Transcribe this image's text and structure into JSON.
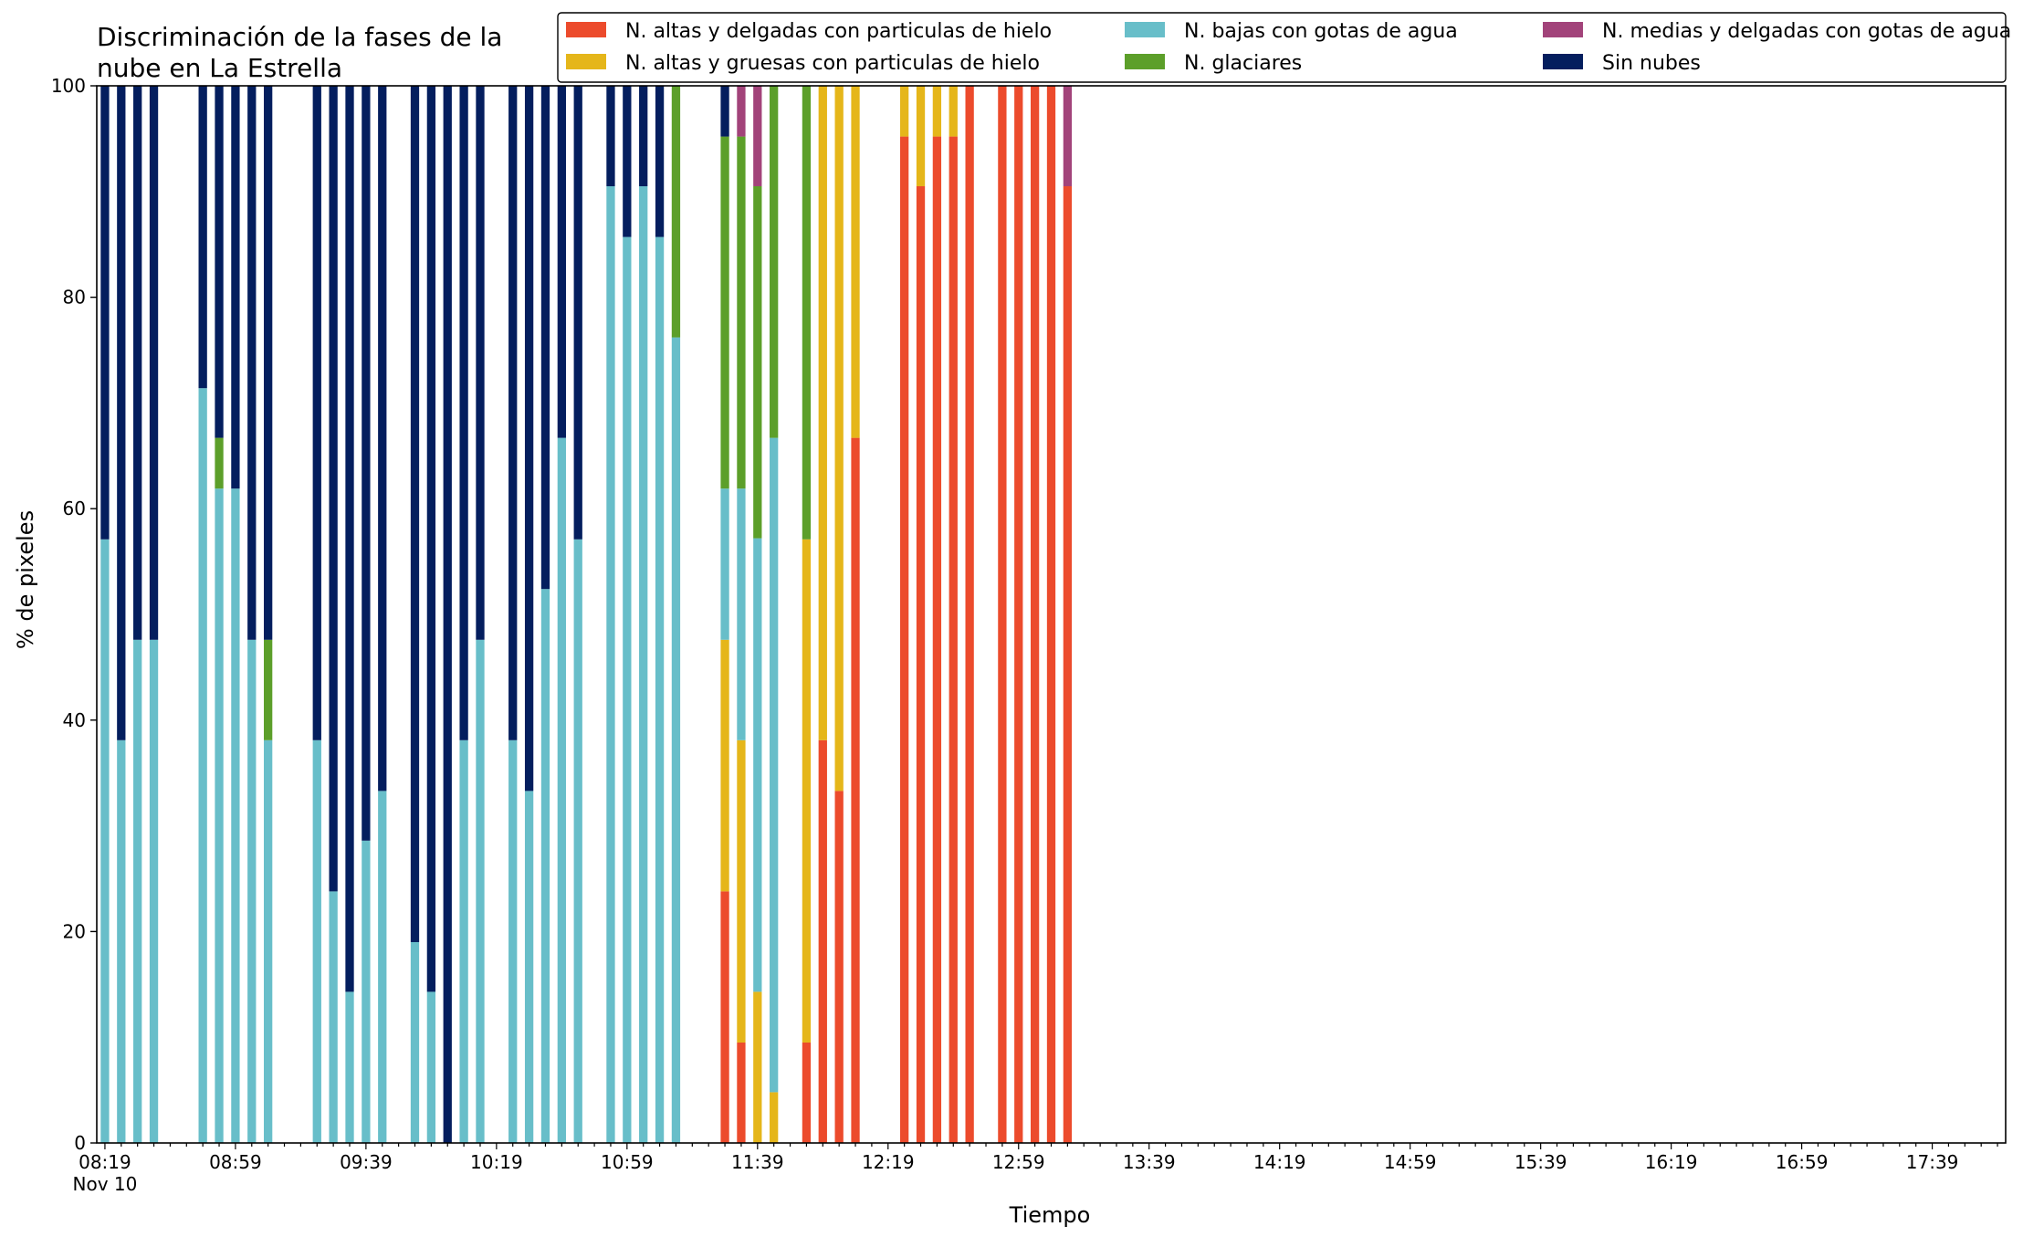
{
  "chart_data": {
    "type": "bar",
    "stacked": true,
    "title": "Discriminación de la fases de la\nnube en La Estrella",
    "xlabel": "Tiempo",
    "ylabel": "% de pixeles",
    "ylim": [
      0,
      100
    ],
    "yticks": [
      0,
      20,
      40,
      60,
      80,
      100
    ],
    "x_tick_labels": [
      "08:19\nNov 10",
      "08:59",
      "09:39",
      "10:19",
      "10:59",
      "11:39",
      "12:19",
      "12:59",
      "13:39",
      "14:19",
      "14:59",
      "15:39",
      "16:19",
      "16:59",
      "17:39"
    ],
    "legend_position": "top-right",
    "grid": false,
    "series": [
      {
        "name": "N. altas y delgadas con particulas de hielo",
        "color": "#ec4b2c"
      },
      {
        "name": "N. altas y gruesas con particulas de hielo",
        "color": "#e5b61a"
      },
      {
        "name": "N. bajas con gotas de agua",
        "color": "#68bec9"
      },
      {
        "name": "N. glaciares",
        "color": "#5c9f2a"
      },
      {
        "name": "N. medias y delgadas con gotas de agua",
        "color": "#a2437a"
      },
      {
        "name": "Sin nubes",
        "color": "#041e5e"
      }
    ],
    "x": [
      "08:19",
      "08:24",
      "08:29",
      "08:34",
      "08:39",
      "08:44",
      "08:49",
      "08:54",
      "08:59",
      "09:04",
      "09:09",
      "09:14",
      "09:19",
      "09:24",
      "09:29",
      "09:34",
      "09:39",
      "09:44",
      "09:49",
      "09:54",
      "09:59",
      "10:04",
      "10:09",
      "10:14",
      "10:19",
      "10:24",
      "10:29",
      "10:34",
      "10:39",
      "10:44",
      "10:49",
      "10:54",
      "10:59",
      "11:04",
      "11:09",
      "11:14",
      "11:19",
      "11:24",
      "11:29",
      "11:34",
      "11:39",
      "11:44",
      "11:49",
      "11:54",
      "11:59",
      "12:04",
      "12:09",
      "12:14",
      "12:19",
      "12:24",
      "12:29",
      "12:34",
      "12:39",
      "12:44",
      "12:49",
      "12:54",
      "12:59",
      "13:04",
      "13:09",
      "13:14",
      "13:19",
      "13:24",
      "13:29",
      "13:34",
      "13:39",
      "13:44",
      "13:49",
      "13:54",
      "13:59",
      "14:04",
      "14:09",
      "14:14",
      "14:19",
      "14:24",
      "14:29",
      "14:34",
      "14:39",
      "14:44",
      "14:49",
      "14:54",
      "14:59",
      "15:04",
      "15:09",
      "15:14",
      "15:19",
      "15:24",
      "15:29",
      "15:34",
      "15:39",
      "15:44",
      "15:49",
      "15:54",
      "15:59",
      "16:04",
      "16:09",
      "16:14",
      "16:19",
      "16:24",
      "16:29",
      "16:34",
      "16:39",
      "16:44",
      "16:49",
      "16:54",
      "16:59",
      "17:04",
      "17:09",
      "17:14",
      "17:19",
      "17:24",
      "17:29",
      "17:34",
      "17:39",
      "17:44",
      "17:49",
      "17:54",
      "17:59"
    ],
    "bars": [
      {
        "time": "08:19",
        "values": [
          0,
          0,
          57.1,
          0,
          0,
          42.9
        ]
      },
      {
        "time": "08:24",
        "values": [
          0,
          0,
          38.1,
          0,
          0,
          61.9
        ]
      },
      {
        "time": "08:29",
        "values": [
          0,
          0,
          47.6,
          0,
          0,
          52.4
        ]
      },
      {
        "time": "08:34",
        "values": [
          0,
          0,
          47.6,
          0,
          0,
          52.4
        ]
      },
      {
        "time": "08:49",
        "values": [
          0,
          0,
          71.4,
          0,
          0,
          28.6
        ]
      },
      {
        "time": "08:54",
        "values": [
          0,
          0,
          61.9,
          4.8,
          0,
          33.3
        ]
      },
      {
        "time": "08:59",
        "values": [
          0,
          0,
          61.9,
          0,
          0,
          38.1
        ]
      },
      {
        "time": "09:04",
        "values": [
          0,
          0,
          47.6,
          0,
          0,
          52.4
        ]
      },
      {
        "time": "09:09",
        "values": [
          0,
          0,
          38.1,
          9.5,
          0,
          52.4
        ]
      },
      {
        "time": "09:24",
        "values": [
          0,
          0,
          38.1,
          0,
          0,
          61.9
        ]
      },
      {
        "time": "09:29",
        "values": [
          0,
          0,
          23.8,
          0,
          0,
          76.2
        ]
      },
      {
        "time": "09:34",
        "values": [
          0,
          0,
          14.3,
          0,
          0,
          85.7
        ]
      },
      {
        "time": "09:39",
        "values": [
          0,
          0,
          28.6,
          0,
          0,
          71.4
        ]
      },
      {
        "time": "09:44",
        "values": [
          0,
          0,
          33.3,
          0,
          0,
          66.7
        ]
      },
      {
        "time": "09:54",
        "values": [
          0,
          0,
          19.0,
          0,
          0,
          81.0
        ]
      },
      {
        "time": "09:59",
        "values": [
          0,
          0,
          14.3,
          0,
          0,
          85.7
        ]
      },
      {
        "time": "10:04",
        "values": [
          0,
          0,
          0,
          0,
          0,
          100
        ]
      },
      {
        "time": "10:09",
        "values": [
          0,
          0,
          38.1,
          0,
          0,
          61.9
        ]
      },
      {
        "time": "10:14",
        "values": [
          0,
          0,
          47.6,
          0,
          0,
          52.4
        ]
      },
      {
        "time": "10:24",
        "values": [
          0,
          0,
          38.1,
          0,
          0,
          61.9
        ]
      },
      {
        "time": "10:29",
        "values": [
          0,
          0,
          33.3,
          0,
          0,
          66.7
        ]
      },
      {
        "time": "10:34",
        "values": [
          0,
          0,
          52.4,
          0,
          0,
          47.6
        ]
      },
      {
        "time": "10:39",
        "values": [
          0,
          0,
          66.7,
          0,
          0,
          33.3
        ]
      },
      {
        "time": "10:44",
        "values": [
          0,
          0,
          57.1,
          0,
          0,
          42.9
        ]
      },
      {
        "time": "10:54",
        "values": [
          0,
          0,
          90.5,
          0,
          0,
          9.5
        ]
      },
      {
        "time": "10:59",
        "values": [
          0,
          0,
          85.7,
          0,
          0,
          14.3
        ]
      },
      {
        "time": "11:04",
        "values": [
          0,
          0,
          90.5,
          0,
          0,
          9.5
        ]
      },
      {
        "time": "11:09",
        "values": [
          0,
          0,
          85.7,
          0,
          0,
          14.3
        ]
      },
      {
        "time": "11:14",
        "values": [
          0,
          0,
          76.2,
          23.8,
          0,
          0
        ]
      },
      {
        "time": "11:29",
        "values": [
          23.8,
          23.8,
          14.3,
          33.3,
          0,
          4.8
        ]
      },
      {
        "time": "11:34",
        "values": [
          9.5,
          28.6,
          23.8,
          33.3,
          4.8,
          0
        ]
      },
      {
        "time": "11:39",
        "values": [
          0,
          14.3,
          42.9,
          33.3,
          9.5,
          0
        ]
      },
      {
        "time": "11:44",
        "values": [
          0,
          4.8,
          61.9,
          33.3,
          0,
          0
        ]
      },
      {
        "time": "11:54",
        "values": [
          9.5,
          47.6,
          0,
          42.9,
          0,
          0
        ]
      },
      {
        "time": "11:59",
        "values": [
          38.1,
          61.9,
          0,
          0,
          0,
          0
        ]
      },
      {
        "time": "12:04",
        "values": [
          33.3,
          66.7,
          0,
          0,
          0,
          0
        ]
      },
      {
        "time": "12:09",
        "values": [
          66.7,
          33.3,
          0,
          0,
          0,
          0
        ]
      },
      {
        "time": "12:24",
        "values": [
          95.2,
          4.8,
          0,
          0,
          0,
          0
        ]
      },
      {
        "time": "12:29",
        "values": [
          90.5,
          9.5,
          0,
          0,
          0,
          0
        ]
      },
      {
        "time": "12:34",
        "values": [
          95.2,
          4.8,
          0,
          0,
          0,
          0
        ]
      },
      {
        "time": "12:39",
        "values": [
          95.2,
          4.8,
          0,
          0,
          0,
          0
        ]
      },
      {
        "time": "12:44",
        "values": [
          100,
          0,
          0,
          0,
          0,
          0
        ]
      },
      {
        "time": "12:54",
        "values": [
          100,
          0,
          0,
          0,
          0,
          0
        ]
      },
      {
        "time": "12:59",
        "values": [
          100,
          0,
          0,
          0,
          0,
          0
        ]
      },
      {
        "time": "13:04",
        "values": [
          100,
          0,
          0,
          0,
          0,
          0
        ]
      },
      {
        "time": "13:09",
        "values": [
          100,
          0,
          0,
          0,
          0,
          0
        ]
      },
      {
        "time": "13:14",
        "values": [
          90.5,
          0,
          0,
          0,
          9.5,
          0
        ]
      }
    ]
  }
}
